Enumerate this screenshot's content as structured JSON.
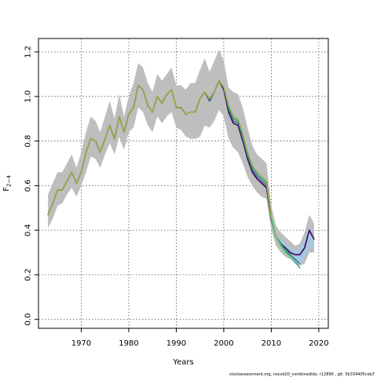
{
  "chart_data": {
    "type": "line",
    "title": "",
    "xlabel": "Years",
    "ylabel": "F",
    "ylabel_sub": "2−4",
    "xlim": [
      1961,
      2022
    ],
    "ylim": [
      -0.04,
      1.26
    ],
    "xticks": [
      1970,
      1980,
      1990,
      2000,
      2010,
      2020
    ],
    "yticks": [
      0.0,
      0.2,
      0.4,
      0.6,
      0.8,
      1.0,
      1.2
    ],
    "ytick_labels": [
      "0.0",
      "0.2",
      "0.4",
      "0.6",
      "0.8",
      "1.0",
      "1.2"
    ],
    "grid": true,
    "x": [
      1963,
      1964,
      1965,
      1966,
      1967,
      1968,
      1969,
      1970,
      1971,
      1972,
      1973,
      1974,
      1975,
      1976,
      1977,
      1978,
      1979,
      1980,
      1981,
      1982,
      1983,
      1984,
      1985,
      1986,
      1987,
      1988,
      1989,
      1990,
      1991,
      1992,
      1993,
      1994,
      1995,
      1996,
      1997,
      1998,
      1999,
      2000,
      2001,
      2002,
      2003,
      2004,
      2005,
      2006,
      2007,
      2008,
      2009,
      2010,
      2011,
      2012,
      2013,
      2014,
      2015,
      2016,
      2017,
      2018,
      2019
    ],
    "band_outer": {
      "color": "#bebebe",
      "x": [
        1963,
        1964,
        1965,
        1966,
        1967,
        1968,
        1969,
        1970,
        1971,
        1972,
        1973,
        1974,
        1975,
        1976,
        1977,
        1978,
        1979,
        1980,
        1981,
        1982,
        1983,
        1984,
        1985,
        1986,
        1987,
        1988,
        1989,
        1990,
        1991,
        1992,
        1993,
        1994,
        1995,
        1996,
        1997,
        1998,
        1999,
        2000,
        2001,
        2002,
        2003,
        2004,
        2005,
        2006,
        2007,
        2008,
        2009,
        2010,
        2011,
        2012,
        2013,
        2014,
        2015,
        2016,
        2017,
        2018,
        2019
      ],
      "upper": [
        0.56,
        0.61,
        0.66,
        0.66,
        0.7,
        0.74,
        0.68,
        0.75,
        0.84,
        0.91,
        0.89,
        0.84,
        0.91,
        0.98,
        0.9,
        1.01,
        0.91,
        1.0,
        1.06,
        1.15,
        1.13,
        1.06,
        1.02,
        1.1,
        1.07,
        1.1,
        1.13,
        1.05,
        1.05,
        1.03,
        1.06,
        1.06,
        1.12,
        1.17,
        1.11,
        1.16,
        1.21,
        1.16,
        1.04,
        1.02,
        1.01,
        0.95,
        0.86,
        0.78,
        0.74,
        0.72,
        0.7,
        0.51,
        0.42,
        0.39,
        0.37,
        0.35,
        0.33,
        0.34,
        0.39,
        0.47,
        0.43
      ],
      "lower": [
        0.41,
        0.45,
        0.51,
        0.52,
        0.56,
        0.59,
        0.55,
        0.6,
        0.66,
        0.73,
        0.72,
        0.68,
        0.74,
        0.79,
        0.74,
        0.82,
        0.76,
        0.84,
        0.86,
        0.95,
        0.93,
        0.87,
        0.84,
        0.91,
        0.88,
        0.91,
        0.93,
        0.86,
        0.85,
        0.82,
        0.81,
        0.81,
        0.82,
        0.87,
        0.86,
        0.89,
        0.94,
        0.91,
        0.81,
        0.77,
        0.75,
        0.7,
        0.64,
        0.6,
        0.57,
        0.55,
        0.54,
        0.4,
        0.33,
        0.3,
        0.28,
        0.27,
        0.25,
        0.24,
        0.25,
        0.3,
        0.3
      ]
    },
    "band_inner": {
      "color": "#a6c8e0",
      "x": [
        2012,
        2013,
        2014,
        2015,
        2016,
        2017,
        2018,
        2019
      ],
      "upper": [
        0.37,
        0.34,
        0.32,
        0.31,
        0.32,
        0.36,
        0.42,
        0.38
      ],
      "lower": [
        0.33,
        0.3,
        0.27,
        0.25,
        0.25,
        0.27,
        0.32,
        0.33
      ]
    },
    "series": [
      {
        "color": "#440154",
        "width": 1.6,
        "x": [
          1963,
          1964,
          1965,
          1966,
          1967,
          1968,
          1969,
          1970,
          1971,
          1972,
          1973,
          1974,
          1975,
          1976,
          1977,
          1978,
          1979,
          1980,
          1981,
          1982,
          1983,
          1984,
          1985,
          1986,
          1987,
          1988,
          1989,
          1990,
          1991,
          1992,
          1993,
          1994,
          1995,
          1996,
          1997,
          1998,
          1999,
          2000,
          2001,
          2002,
          2003,
          2004,
          2005,
          2006,
          2007,
          2008,
          2009,
          2010,
          2011,
          2012,
          2013,
          2014,
          2015,
          2016,
          2017,
          2018,
          2019
        ],
        "values": [
          0.47,
          0.52,
          0.58,
          0.58,
          0.62,
          0.66,
          0.61,
          0.66,
          0.75,
          0.81,
          0.8,
          0.75,
          0.81,
          0.87,
          0.81,
          0.91,
          0.84,
          0.92,
          0.95,
          1.05,
          1.03,
          0.96,
          0.93,
          1.0,
          0.97,
          1.01,
          1.03,
          0.95,
          0.95,
          0.92,
          0.93,
          0.93,
          0.99,
          1.02,
          0.98,
          1.02,
          1.07,
          1.03,
          0.93,
          0.88,
          0.87,
          0.8,
          0.72,
          0.66,
          0.63,
          0.61,
          0.59,
          0.45,
          0.37,
          0.34,
          0.32,
          0.3,
          0.29,
          0.29,
          0.32,
          0.4,
          0.36
        ]
      },
      {
        "color": "#31688e",
        "width": 1.3,
        "x": [
          1963,
          1964,
          1965,
          1966,
          1967,
          1968,
          1969,
          1970,
          1971,
          1972,
          1973,
          1974,
          1975,
          1976,
          1977,
          1978,
          1979,
          1980,
          1981,
          1982,
          1983,
          1984,
          1985,
          1986,
          1987,
          1988,
          1989,
          1990,
          1991,
          1992,
          1993,
          1994,
          1995,
          1996,
          1997,
          1998,
          1999,
          2000,
          2001,
          2002,
          2003,
          2004,
          2005,
          2006,
          2007,
          2008,
          2009,
          2010,
          2011,
          2012,
          2013,
          2014,
          2015,
          2016
        ],
        "values": [
          0.47,
          0.52,
          0.58,
          0.58,
          0.62,
          0.66,
          0.61,
          0.66,
          0.75,
          0.81,
          0.8,
          0.75,
          0.81,
          0.87,
          0.81,
          0.91,
          0.84,
          0.92,
          0.95,
          1.05,
          1.03,
          0.96,
          0.93,
          1.0,
          0.97,
          1.01,
          1.03,
          0.95,
          0.95,
          0.92,
          0.93,
          0.93,
          0.99,
          1.02,
          0.98,
          1.02,
          1.07,
          1.04,
          0.94,
          0.89,
          0.88,
          0.81,
          0.73,
          0.67,
          0.64,
          0.62,
          0.6,
          0.45,
          0.37,
          0.34,
          0.31,
          0.29,
          0.27,
          0.25
        ]
      },
      {
        "color": "#21908c",
        "width": 1.3,
        "x": [
          1963,
          1964,
          1965,
          1966,
          1967,
          1968,
          1969,
          1970,
          1971,
          1972,
          1973,
          1974,
          1975,
          1976,
          1977,
          1978,
          1979,
          1980,
          1981,
          1982,
          1983,
          1984,
          1985,
          1986,
          1987,
          1988,
          1989,
          1990,
          1991,
          1992,
          1993,
          1994,
          1995,
          1996,
          1997,
          1998,
          1999,
          2000,
          2001,
          2002,
          2003,
          2004,
          2005,
          2006,
          2007,
          2008,
          2009,
          2010,
          2011,
          2012,
          2013,
          2014,
          2015,
          2016
        ],
        "values": [
          0.47,
          0.52,
          0.58,
          0.58,
          0.62,
          0.66,
          0.61,
          0.66,
          0.75,
          0.81,
          0.8,
          0.75,
          0.81,
          0.87,
          0.81,
          0.91,
          0.84,
          0.92,
          0.95,
          1.05,
          1.03,
          0.96,
          0.93,
          1.0,
          0.97,
          1.01,
          1.03,
          0.95,
          0.95,
          0.92,
          0.93,
          0.93,
          0.99,
          1.02,
          0.99,
          1.02,
          1.07,
          1.04,
          0.95,
          0.9,
          0.89,
          0.82,
          0.74,
          0.68,
          0.65,
          0.63,
          0.61,
          0.46,
          0.37,
          0.34,
          0.31,
          0.28,
          0.26,
          0.23
        ]
      },
      {
        "color": "#5ec962",
        "width": 1.6,
        "x": [
          1963,
          1964,
          1965,
          1966,
          1967,
          1968,
          1969,
          1970,
          1971,
          1972,
          1973,
          1974,
          1975,
          1976,
          1977,
          1978,
          1979,
          1980,
          1981,
          1982,
          1983,
          1984,
          1985,
          1986,
          1987,
          1988,
          1989,
          1990,
          1991,
          1992,
          1993,
          1994,
          1995,
          1996,
          1997,
          1998,
          1999,
          2000,
          2001,
          2002,
          2003,
          2004,
          2005,
          2006,
          2007,
          2008,
          2009,
          2010,
          2011,
          2012,
          2013,
          2014,
          2015
        ],
        "values": [
          0.47,
          0.52,
          0.58,
          0.58,
          0.62,
          0.66,
          0.61,
          0.66,
          0.75,
          0.81,
          0.8,
          0.75,
          0.81,
          0.87,
          0.81,
          0.91,
          0.84,
          0.92,
          0.95,
          1.05,
          1.03,
          0.96,
          0.93,
          1.0,
          0.97,
          1.01,
          1.03,
          0.95,
          0.95,
          0.92,
          0.93,
          0.93,
          0.99,
          1.02,
          0.99,
          1.02,
          1.07,
          1.04,
          0.96,
          0.91,
          0.9,
          0.83,
          0.75,
          0.69,
          0.66,
          0.64,
          0.62,
          0.46,
          0.37,
          0.33,
          0.3,
          0.28,
          0.26
        ]
      },
      {
        "color": "#a8a33a",
        "width": 1.2,
        "x": [
          1963,
          1964,
          1965,
          1966,
          1967,
          1968,
          1969,
          1970,
          1971,
          1972,
          1973,
          1974,
          1975,
          1976,
          1977,
          1978,
          1979,
          1980,
          1981,
          1982,
          1983,
          1984,
          1985,
          1986,
          1987,
          1988,
          1989,
          1990,
          1991,
          1992,
          1993,
          1994,
          1995,
          1996,
          1997,
          1998,
          1999,
          2000,
          2001,
          2002,
          2003,
          2004,
          2005,
          2006,
          2007,
          2008,
          2009,
          2010
        ],
        "values": [
          0.47,
          0.52,
          0.58,
          0.58,
          0.62,
          0.66,
          0.61,
          0.66,
          0.75,
          0.81,
          0.8,
          0.75,
          0.81,
          0.87,
          0.81,
          0.91,
          0.84,
          0.92,
          0.95,
          1.05,
          1.03,
          0.96,
          0.93,
          1.0,
          0.97,
          1.01,
          1.03,
          0.95,
          0.95,
          0.92,
          0.93,
          0.93,
          0.99,
          1.02,
          0.99,
          1.02,
          1.07,
          1.04,
          0.96,
          0.91,
          0.9,
          0.83,
          0.75,
          0.69,
          0.66,
          0.64,
          0.62,
          0.47
        ]
      }
    ]
  },
  "footer": {
    "text": "stockassessment.org, nscod20_combinedIdx, r12890 , git: 5b334405cda7"
  }
}
